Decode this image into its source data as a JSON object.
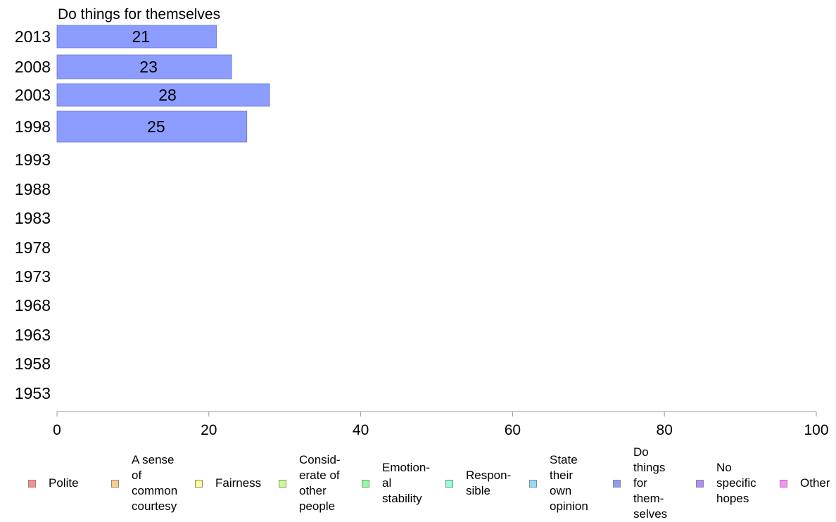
{
  "chart_data": {
    "type": "bar",
    "orientation": "horizontal",
    "title": "Do things for themselves",
    "categories": [
      "2013",
      "2008",
      "2003",
      "1998",
      "1993",
      "1988",
      "1983",
      "1978",
      "1973",
      "1968",
      "1963",
      "1958",
      "1953"
    ],
    "values": [
      21,
      23,
      28,
      25,
      null,
      null,
      null,
      null,
      null,
      null,
      null,
      null,
      null
    ],
    "value_labels": [
      "21",
      "23",
      "28",
      "25",
      "",
      "",
      "",
      "",
      "",
      "",
      "",
      "",
      ""
    ],
    "xlim": [
      0,
      100
    ],
    "xticks": [
      "0",
      "20",
      "40",
      "60",
      "80",
      "100"
    ],
    "grid": false,
    "bar_color": "#8c9cff",
    "legend_position": "bottom",
    "legend": [
      {
        "label": "Polite",
        "color": "#ff8c8c"
      },
      {
        "label": "A sense\nof\ncommon\ncourtesy",
        "color": "#ffcc8c"
      },
      {
        "label": "Fairness",
        "color": "#ffff8c"
      },
      {
        "label": "Consid-\nerate of\nother\npeople",
        "color": "#c6ff8c"
      },
      {
        "label": "Emotion-\nal\nstability",
        "color": "#8cff9c"
      },
      {
        "label": "Respon-\nsible",
        "color": "#8cffdd"
      },
      {
        "label": "State\ntheir\nown\nopinion",
        "color": "#8cdcff"
      },
      {
        "label": "Do\nthings\nfor\nthem-\nselves",
        "color": "#8c9cff"
      },
      {
        "label": "No\nspecific\nhopes",
        "color": "#b28cff"
      },
      {
        "label": "Other",
        "color": "#ff8cff"
      }
    ]
  }
}
